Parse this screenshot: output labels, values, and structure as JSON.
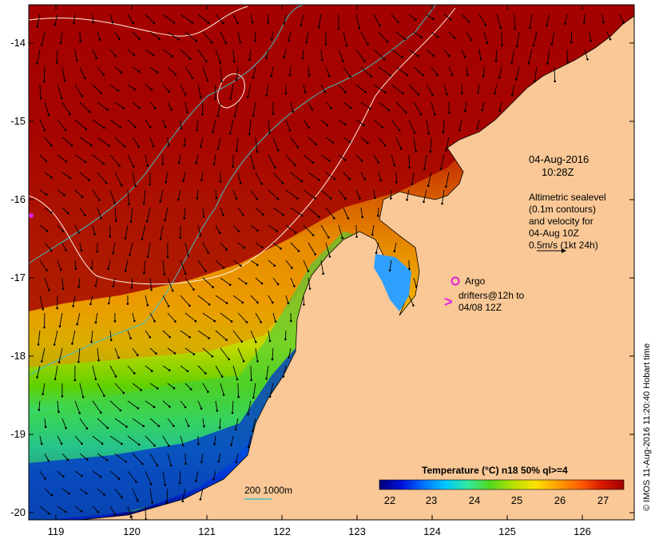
{
  "map": {
    "lon_ticks": [
      "119",
      "120",
      "121",
      "122",
      "123",
      "124",
      "125",
      "126"
    ],
    "lat_ticks": [
      "-14",
      "-15",
      "-16",
      "-17",
      "-18",
      "-19",
      "-20"
    ]
  },
  "annotations": {
    "date": "04-Aug-2016",
    "time": "10:28Z",
    "altimetry_lines": [
      "Altimetric sealevel",
      "(0.1m contours)",
      "and velocity for",
      "04-Aug 10Z",
      "0.5m/s (1kt 24h)"
    ],
    "argo_label": "Argo",
    "drifter_symbol": ">",
    "drifter_lines": [
      "drifters@12h to",
      "04/08 12Z"
    ],
    "depth_legend": "200  1000m"
  },
  "colorbar": {
    "title": "Temperature (°C) n18 50% ql>=4",
    "ticks": [
      "22",
      "23",
      "24",
      "25",
      "26",
      "27"
    ],
    "min": 21.5,
    "max": 27.5,
    "colors": [
      "#00007a",
      "#0010d8",
      "#0070ff",
      "#00c8ff",
      "#30e8a0",
      "#50d820",
      "#b8e000",
      "#ffe000",
      "#ffa000",
      "#ff6000",
      "#d81800",
      "#a00000"
    ]
  },
  "credit": "© IMOS 11-Aug-2016 11:20:40 Hobart time",
  "colors": {
    "land": "#f9c896",
    "warm": "#a30200",
    "contour_sea": "#fff4e0",
    "contour_depth": "#40c0c0",
    "argo": "#e020e0"
  }
}
